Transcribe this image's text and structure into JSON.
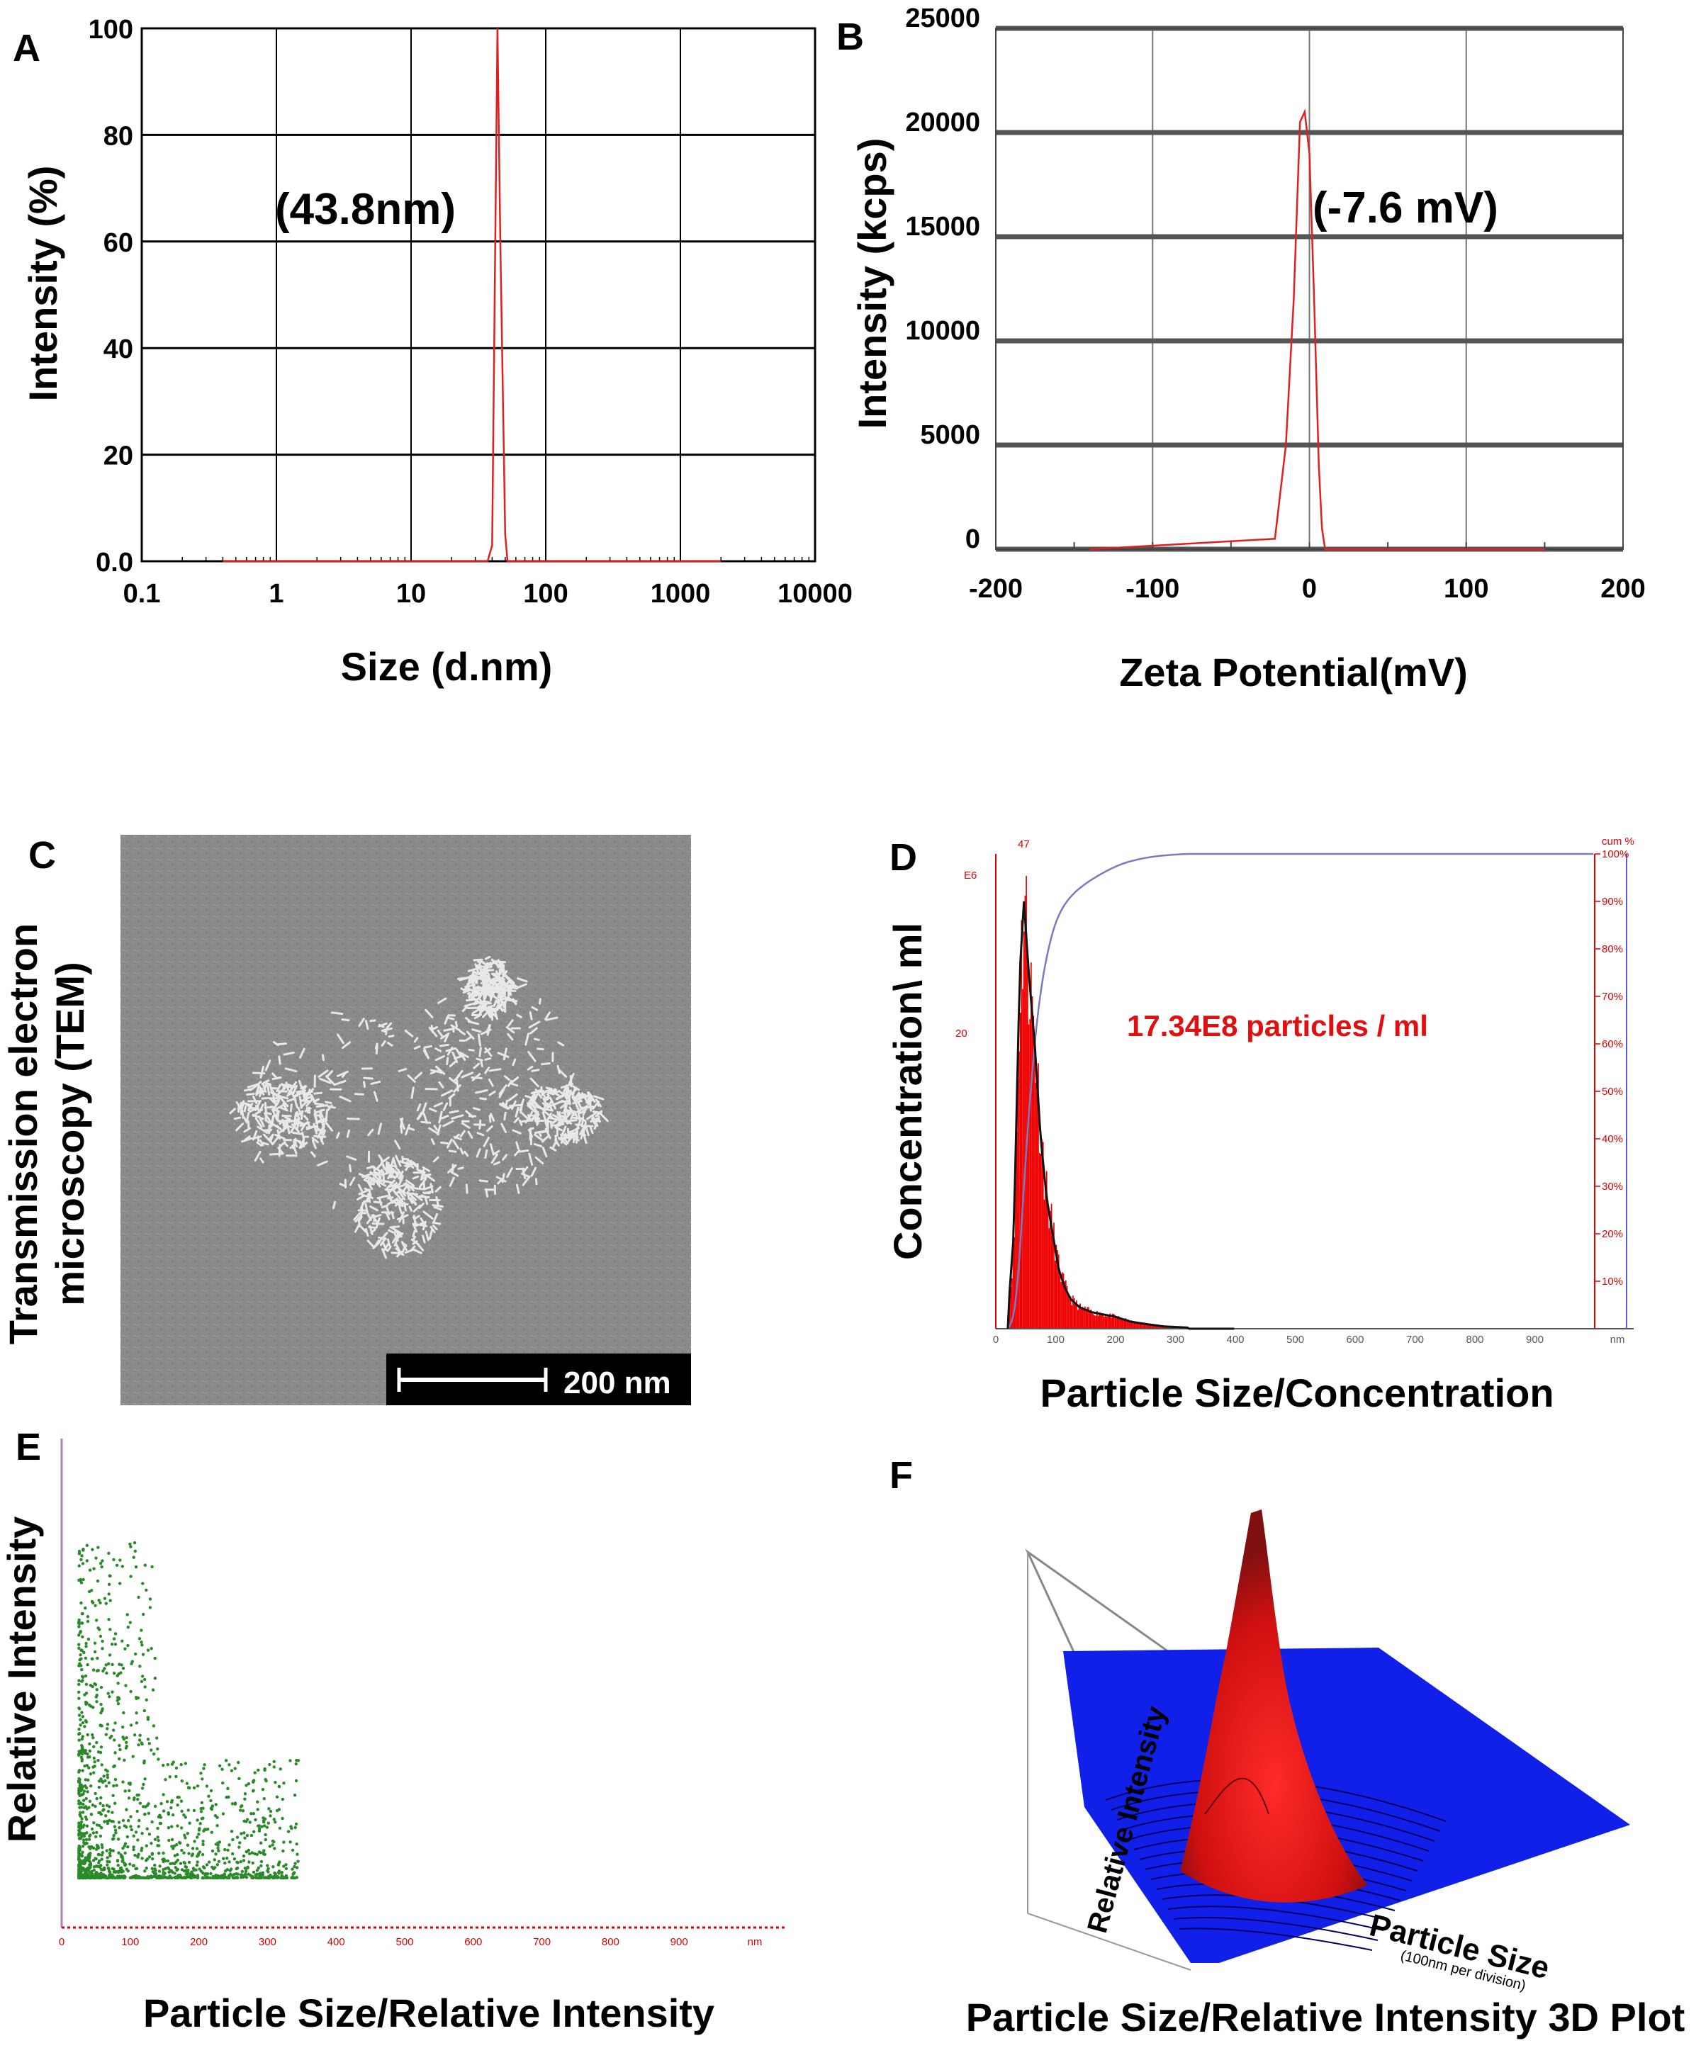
{
  "figure": {
    "panel_labels": [
      "A",
      "B",
      "C",
      "D",
      "E",
      "F"
    ]
  },
  "chart_data": [
    {
      "panel": "A",
      "type": "line",
      "xlabel": "Size (d.nm)",
      "ylabel": "Intensity (%)",
      "x_scale": "log",
      "xlim": [
        0.1,
        10000
      ],
      "ylim": [
        0,
        100
      ],
      "x_ticks": [
        "0.1",
        "1",
        "10",
        "100",
        "1000",
        "10000"
      ],
      "y_ticks": [
        "0.0",
        "20",
        "40",
        "60",
        "80",
        "100"
      ],
      "annotation": "(43.8nm)",
      "grid": true,
      "color": "#e02020",
      "series": [
        {
          "x": [
            0.4,
            37,
            40,
            43.8,
            46,
            50,
            52,
            2000
          ],
          "y": [
            0,
            0,
            3,
            100,
            60,
            5,
            0,
            0
          ]
        }
      ]
    },
    {
      "panel": "B",
      "type": "line",
      "xlabel": "Zeta Potential(mV)",
      "ylabel": "Intensity (kcps)",
      "xlim": [
        -200,
        200
      ],
      "ylim": [
        0,
        25000
      ],
      "x_ticks": [
        "-200",
        "-100",
        "0",
        "100",
        "200"
      ],
      "y_ticks": [
        "0",
        "5000",
        "10000",
        "15000",
        "20000",
        "25000"
      ],
      "annotation": "(-7.6 mV)",
      "grid": true,
      "color": "#e02020",
      "series": [
        {
          "x": [
            -140,
            -22,
            -15,
            -10,
            -6,
            -3,
            0,
            3,
            6,
            8,
            10,
            150
          ],
          "y": [
            0,
            500,
            5000,
            12000,
            20500,
            21000,
            19000,
            12000,
            4000,
            1000,
            0,
            0
          ]
        }
      ]
    },
    {
      "panel": "D",
      "type": "bar",
      "xlabel": "Particle Size/Concentration",
      "ylabel": "Concentration\\ ml",
      "y_unit_label": "E6",
      "y_ticks": [
        "20"
      ],
      "right_axis_label": "cum %",
      "right_ticks": [
        "10%",
        "20%",
        "30%",
        "40%",
        "50%",
        "60%",
        "70%",
        "80%",
        "90%",
        "100%"
      ],
      "x_ticks": [
        "0",
        "100",
        "200",
        "300",
        "400",
        "500",
        "600",
        "700",
        "800",
        "900"
      ],
      "x_unit": "nm",
      "xlim": [
        0,
        1000
      ],
      "peak_label": "47",
      "annotation": "17.34E8 particles / ml",
      "bar_color": "#ee0000",
      "series": [
        {
          "name": "concentration",
          "x": [
            20,
            30,
            40,
            47,
            55,
            65,
            75,
            85,
            95,
            105,
            115,
            125,
            140,
            160,
            180,
            200,
            225,
            250,
            280,
            320
          ],
          "values": [
            1,
            8,
            30,
            36,
            30,
            24,
            16,
            11,
            8,
            5,
            3.5,
            2.5,
            1.8,
            1.4,
            1.2,
            1.0,
            0.6,
            0.4,
            0.2,
            0.1
          ]
        }
      ]
    },
    {
      "panel": "E",
      "type": "scatter",
      "xlabel": "Particle Size/Relative Intensity",
      "ylabel": "Relative Intensity",
      "x_ticks": [
        "0",
        "100",
        "200",
        "300",
        "400",
        "500",
        "600",
        "700",
        "800",
        "900"
      ],
      "x_unit": "nm",
      "xlim": [
        0,
        1000
      ],
      "point_color": "#2a8a2a",
      "points_note": "dense cloud of ~1500 points, 20-360 nm, concentrated near 30-120 nm at low intensity"
    },
    {
      "panel": "F",
      "type": "surface3d",
      "title": "Particle Size/Relative Intensity 3D Plot",
      "x_axis_label": "Particle Size",
      "x_axis_sublabel": "(100nm per division)",
      "z_axis_label": "Relative Intensity",
      "colors": {
        "plane": "#1020e8",
        "peak": "#ff1010"
      }
    }
  ],
  "tem": {
    "ylabel_line1": "Transmission electron",
    "ylabel_line2": "microscopy (TEM)",
    "scale_bar_label": "200 nm"
  }
}
